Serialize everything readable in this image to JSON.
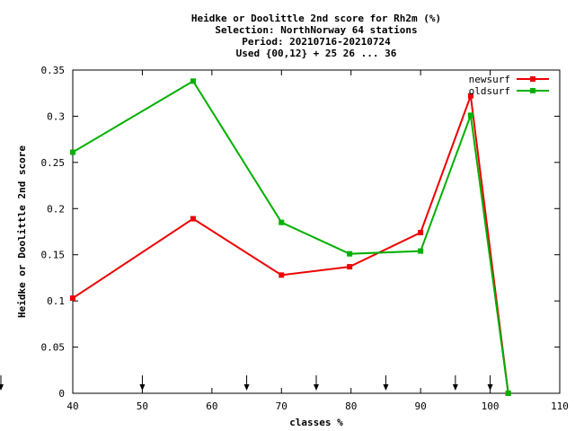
{
  "chart_data": {
    "type": "line",
    "title_lines": [
      "Heidke or Doolittle 2nd score  for Rh2m (%)",
      "Selection: NorthNorway     64 stations",
      "Period: 20210716-20210724",
      "Used {00,12} + 25 26 ... 36"
    ],
    "xlabel": "classes %",
    "ylabel": "Heidke or Doolittle 2nd score",
    "xlim": [
      40,
      110
    ],
    "ylim": [
      0,
      0.35
    ],
    "xticks": [
      40,
      50,
      60,
      70,
      80,
      90,
      100,
      110
    ],
    "xtick_labels": [
      "40",
      "50",
      "60",
      "70",
      "80",
      "90",
      "100",
      "110"
    ],
    "yticks": [
      0,
      0.05,
      0.1,
      0.15,
      0.2,
      0.25,
      0.3,
      0.35
    ],
    "ytick_labels": [
      "0",
      "0.05",
      "0.1",
      "0.15",
      "0.2",
      "0.25",
      "0.3",
      "0.35"
    ],
    "grid": false,
    "legend_position": "top-right",
    "arrow_markers_x": [
      40,
      50,
      65,
      75,
      85,
      95,
      100
    ],
    "series": [
      {
        "name": "newsurf",
        "color": "#ee0000",
        "x": [
          40,
          57.3,
          70,
          79.8,
          90,
          97.2,
          102.6
        ],
        "y": [
          0.103,
          0.189,
          0.128,
          0.137,
          0.174,
          0.322,
          0.0
        ]
      },
      {
        "name": "oldsurf",
        "color": "#00b000",
        "x": [
          40,
          57.3,
          70,
          79.8,
          90,
          97.2,
          102.6
        ],
        "y": [
          0.261,
          0.338,
          0.185,
          0.151,
          0.154,
          0.301,
          0.0
        ]
      }
    ]
  }
}
